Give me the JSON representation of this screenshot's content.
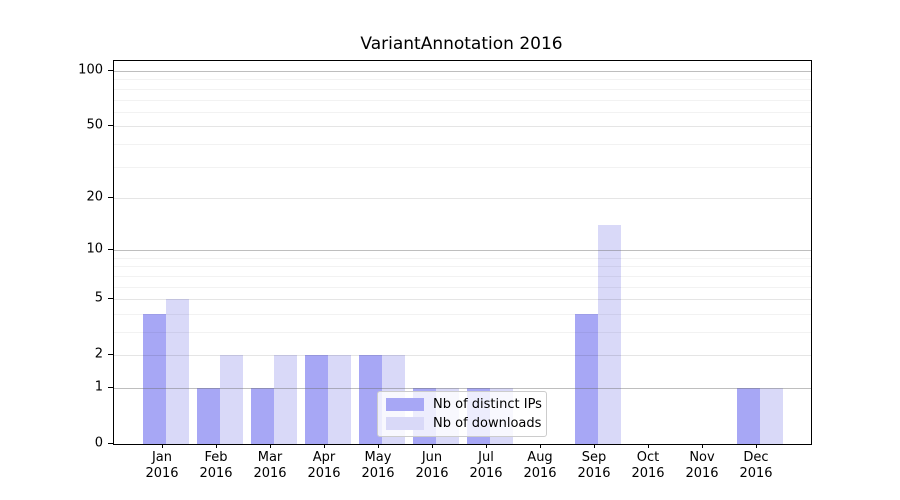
{
  "chart_data": {
    "type": "bar",
    "title": "VariantAnnotation 2016",
    "categories": [
      "Jan",
      "Feb",
      "Mar",
      "Apr",
      "May",
      "Jun",
      "Jul",
      "Aug",
      "Sep",
      "Oct",
      "Nov",
      "Dec"
    ],
    "category_year": "2016",
    "x_tick_labels": [
      "Jan\n2016",
      "Feb\n2016",
      "Mar\n2016",
      "Apr\n2016",
      "May\n2016",
      "Jun\n2016",
      "Jul\n2016",
      "Aug\n2016",
      "Sep\n2016",
      "Oct\n2016",
      "Nov\n2016",
      "Dec\n2016"
    ],
    "series": [
      {
        "name": "Nb of distinct IPs",
        "color": "#a7a7f5",
        "values": [
          4,
          1,
          1,
          2,
          2,
          1,
          1,
          0,
          4,
          0,
          0,
          1
        ]
      },
      {
        "name": "Nb of downloads",
        "color": "#d9d9f8",
        "values": [
          5,
          2,
          2,
          2,
          2,
          1,
          1,
          0,
          14,
          0,
          0,
          1
        ]
      }
    ],
    "y_axis": {
      "scale": "log1p",
      "tick_values": [
        0,
        1,
        2,
        5,
        10,
        20,
        50,
        100
      ],
      "tick_labels": [
        "0",
        "1",
        "2",
        "5",
        "10",
        "20",
        "50",
        "100"
      ],
      "max": 100,
      "major_gridlines": [
        1,
        10,
        100
      ],
      "medium_gridlines": [
        2,
        5,
        20,
        50
      ],
      "minor_gridlines": [
        3,
        4,
        6,
        7,
        8,
        9,
        30,
        40,
        60,
        70,
        80,
        90
      ]
    },
    "legend": {
      "entries": [
        "Nb of distinct IPs",
        "Nb of downloads"
      ],
      "position": "lower center"
    },
    "grid": true,
    "background_color": "#ffffff",
    "spine_color": "#000000"
  }
}
